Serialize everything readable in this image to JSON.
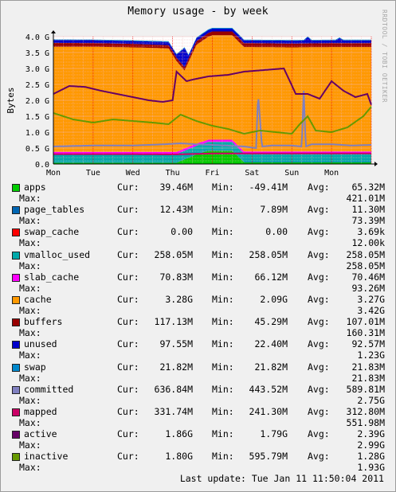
{
  "chart_data": {
    "type": "area",
    "title": "Memory usage - by week",
    "credit": "RRDTOOL / TOBI OETIKER",
    "ylabel": "Bytes",
    "ylim": [
      0,
      4.0
    ],
    "y_unit": "G",
    "yticks": [
      "0.0",
      "0.5 G",
      "1.0 G",
      "1.5 G",
      "2.0 G",
      "2.5 G",
      "3.0 G",
      "3.5 G",
      "4.0 G"
    ],
    "xticks": [
      "Mon",
      "Tue",
      "Wed",
      "Thu",
      "Fri",
      "Sat",
      "Sun",
      "Mon"
    ],
    "x_range_days": [
      0,
      8
    ],
    "grid": true,
    "background": "#ffffff",
    "grid_color": "#f2b8b8",
    "vline_color": "#ee0000",
    "series": [
      {
        "name": "apps",
        "color": "#00cc00",
        "style": "area",
        "x": [
          0,
          2.8,
          3.1,
          3.6,
          3.9,
          4.5,
          4.8,
          8
        ],
        "values": [
          0.04,
          0.04,
          0.04,
          0.3,
          0.42,
          0.42,
          0.05,
          0.05
        ]
      },
      {
        "name": "page_tables",
        "color": "#0066b3",
        "style": "stack",
        "x": [
          0,
          8
        ],
        "values": [
          0.012,
          0.012
        ]
      },
      {
        "name": "swap_cache",
        "color": "#ff0000",
        "style": "stack",
        "x": [
          0,
          8
        ],
        "values": [
          0.0,
          0.0
        ]
      },
      {
        "name": "vmalloc_used",
        "color": "#00aaaa",
        "style": "stack",
        "x": [
          0,
          8
        ],
        "values": [
          0.26,
          0.26
        ]
      },
      {
        "name": "slab_cache",
        "color": "#ff00ff",
        "style": "stack",
        "x": [
          0,
          8
        ],
        "values": [
          0.07,
          0.07
        ]
      },
      {
        "name": "cache",
        "color": "#ff9900",
        "style": "stack",
        "x": [
          0,
          1,
          2,
          2.9,
          3.3,
          3.6,
          4,
          5,
          6,
          7,
          8
        ],
        "values": [
          3.3,
          3.3,
          3.28,
          3.25,
          2.45,
          3.1,
          3.28,
          3.28,
          3.27,
          3.28,
          3.28
        ]
      },
      {
        "name": "buffers",
        "color": "#990000",
        "style": "stack",
        "x": [
          0,
          2,
          3,
          4,
          6,
          8
        ],
        "values": [
          0.12,
          0.11,
          0.1,
          0.12,
          0.12,
          0.12
        ]
      },
      {
        "name": "unused",
        "color": "#0000cc",
        "style": "stack",
        "x": [
          0,
          2,
          3.1,
          3.3,
          3.4,
          4,
          6.3,
          6.4,
          6.5,
          7.1,
          7.2,
          7.3,
          8
        ],
        "values": [
          0.09,
          0.09,
          0.1,
          0.6,
          0.1,
          0.09,
          0.09,
          0.2,
          0.09,
          0.09,
          0.16,
          0.09,
          0.09
        ]
      },
      {
        "name": "swap",
        "color": "#0088cc",
        "style": "stack",
        "x": [
          0,
          8
        ],
        "values": [
          0.022,
          0.022
        ]
      },
      {
        "name": "committed",
        "color": "#8080c0",
        "style": "line",
        "x": [
          0,
          1,
          2,
          2.8,
          3.2,
          3.6,
          4,
          4.8,
          5.1,
          5.15,
          5.25,
          5.5,
          6,
          6.25,
          6.3,
          6.35,
          6.5,
          7,
          7.5,
          8
        ],
        "values": [
          0.55,
          0.58,
          0.58,
          0.62,
          0.65,
          0.62,
          0.6,
          0.55,
          0.5,
          2.2,
          0.55,
          0.58,
          0.58,
          0.55,
          2.3,
          0.55,
          0.62,
          0.62,
          0.58,
          0.6
        ]
      },
      {
        "name": "mapped",
        "color": "#cc0066",
        "style": "line",
        "x": [
          0,
          2,
          3,
          4,
          6,
          8
        ],
        "values": [
          0.31,
          0.31,
          0.3,
          0.33,
          0.33,
          0.33
        ]
      },
      {
        "name": "active",
        "color": "#660066",
        "style": "line",
        "x": [
          0,
          0.4,
          0.8,
          1.2,
          1.6,
          2,
          2.4,
          2.75,
          3.0,
          3.1,
          3.35,
          3.5,
          3.9,
          4.4,
          4.8,
          5.3,
          5.8,
          6.1,
          6.4,
          6.7,
          7.0,
          7.3,
          7.6,
          7.9,
          8
        ],
        "values": [
          2.2,
          2.45,
          2.42,
          2.3,
          2.2,
          2.1,
          2.0,
          1.95,
          2.0,
          2.9,
          2.6,
          2.65,
          2.75,
          2.8,
          2.9,
          2.95,
          3.0,
          2.2,
          2.2,
          2.05,
          2.6,
          2.3,
          2.1,
          2.2,
          1.86
        ]
      },
      {
        "name": "inactive",
        "color": "#669900",
        "style": "line",
        "x": [
          0,
          0.5,
          1,
          1.5,
          2,
          2.5,
          2.9,
          3.2,
          3.6,
          4,
          4.4,
          4.8,
          5.2,
          5.6,
          6.0,
          6.2,
          6.4,
          6.6,
          7.0,
          7.4,
          7.8,
          8
        ],
        "values": [
          1.6,
          1.4,
          1.3,
          1.4,
          1.35,
          1.3,
          1.25,
          1.55,
          1.35,
          1.2,
          1.1,
          0.95,
          1.05,
          1.0,
          0.95,
          1.25,
          1.5,
          1.05,
          1.0,
          1.15,
          1.5,
          1.8
        ]
      }
    ]
  },
  "legend_labels": {
    "cur": "Cur:",
    "min": "Min:",
    "avg": "Avg:",
    "max": "Max:"
  },
  "legend": [
    {
      "name": "apps",
      "color": "#00cc00",
      "cur": "39.46M",
      "min": "-49.41M",
      "avg": "65.32M",
      "max": "421.01M"
    },
    {
      "name": "page_tables",
      "color": "#0066b3",
      "cur": "12.43M",
      "min": "7.89M",
      "avg": "11.30M",
      "max": "73.39M"
    },
    {
      "name": "swap_cache",
      "color": "#ff0000",
      "cur": "0.00",
      "min": "0.00",
      "avg": "3.69k",
      "max": "12.00k"
    },
    {
      "name": "vmalloc_used",
      "color": "#00aaaa",
      "cur": "258.05M",
      "min": "258.05M",
      "avg": "258.05M",
      "max": "258.05M"
    },
    {
      "name": "slab_cache",
      "color": "#ff00ff",
      "cur": "70.83M",
      "min": "66.12M",
      "avg": "70.46M",
      "max": "93.26M"
    },
    {
      "name": "cache",
      "color": "#ff9900",
      "cur": "3.28G",
      "min": "2.09G",
      "avg": "3.27G",
      "max": "3.42G"
    },
    {
      "name": "buffers",
      "color": "#990000",
      "cur": "117.13M",
      "min": "45.29M",
      "avg": "107.01M",
      "max": "160.31M"
    },
    {
      "name": "unused",
      "color": "#0000cc",
      "cur": "97.55M",
      "min": "22.40M",
      "avg": "92.57M",
      "max": "1.23G"
    },
    {
      "name": "swap",
      "color": "#0088cc",
      "cur": "21.82M",
      "min": "21.82M",
      "avg": "21.83M",
      "max": "21.83M"
    },
    {
      "name": "committed",
      "color": "#8080c0",
      "cur": "636.84M",
      "min": "443.52M",
      "avg": "589.81M",
      "max": "2.75G"
    },
    {
      "name": "mapped",
      "color": "#cc0066",
      "cur": "331.74M",
      "min": "241.30M",
      "avg": "312.80M",
      "max": "551.98M"
    },
    {
      "name": "active",
      "color": "#660066",
      "cur": "1.86G",
      "min": "1.79G",
      "avg": "2.39G",
      "max": "2.99G"
    },
    {
      "name": "inactive",
      "color": "#669900",
      "cur": "1.80G",
      "min": "595.79M",
      "avg": "1.28G",
      "max": "1.93G"
    }
  ],
  "last_update": "Last update: Tue Jan 11 11:50:04 2011"
}
